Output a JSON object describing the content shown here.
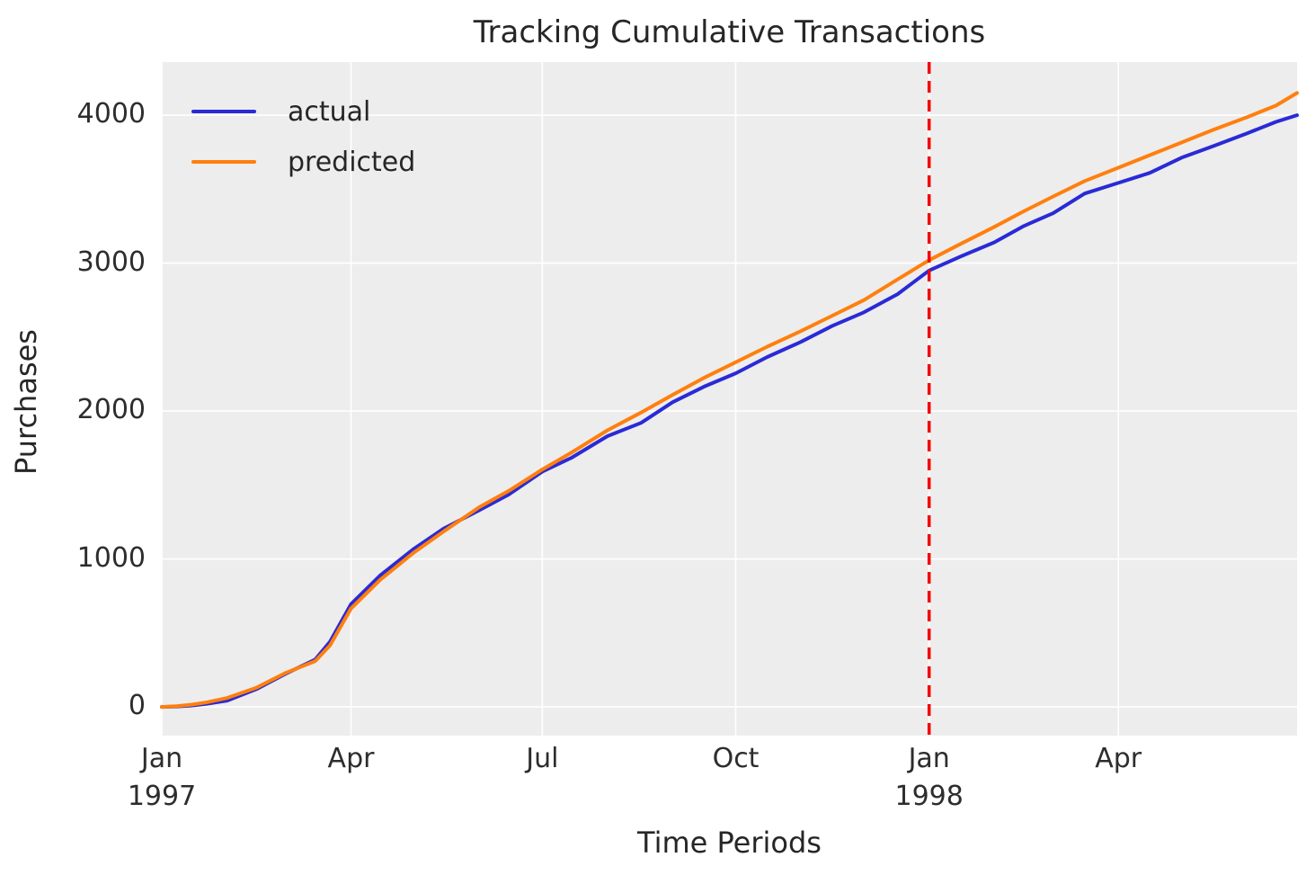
{
  "chart_data": {
    "type": "line",
    "title": "Tracking Cumulative Transactions",
    "xlabel": "Time Periods",
    "ylabel": "Purchases",
    "plot_background": "#ededed",
    "grid": true,
    "grid_color": "#ffffff",
    "legend_position": "upper left",
    "x_unit": "days since 1997-01-01",
    "xlim_days": [
      0,
      540
    ],
    "ylim": [
      -194,
      4359
    ],
    "y_ticks": [
      0,
      1000,
      2000,
      3000,
      4000
    ],
    "x_ticks": [
      {
        "day": 0,
        "label": "Jan",
        "sublabel": "1997"
      },
      {
        "day": 90,
        "label": "Apr",
        "sublabel": ""
      },
      {
        "day": 181,
        "label": "Jul",
        "sublabel": ""
      },
      {
        "day": 273,
        "label": "Oct",
        "sublabel": ""
      },
      {
        "day": 365,
        "label": "Jan",
        "sublabel": "1998"
      },
      {
        "day": 455,
        "label": "Apr",
        "sublabel": ""
      }
    ],
    "dates": [
      "1997-01-01",
      "1997-01-08",
      "1997-01-15",
      "1997-01-22",
      "1997-02-01",
      "1997-02-15",
      "1997-03-01",
      "1997-03-15",
      "1997-03-22",
      "1997-04-01",
      "1997-04-15",
      "1997-05-01",
      "1997-05-15",
      "1997-06-01",
      "1997-06-15",
      "1997-07-01",
      "1997-07-15",
      "1997-08-01",
      "1997-08-17",
      "1997-09-01",
      "1997-09-16",
      "1997-10-01",
      "1997-10-16",
      "1997-11-01",
      "1997-11-16",
      "1997-12-01",
      "1997-12-17",
      "1998-01-01",
      "1998-01-16",
      "1998-02-01",
      "1998-02-15",
      "1998-03-01",
      "1998-03-16",
      "1998-04-01",
      "1998-04-16",
      "1998-05-01",
      "1998-05-16",
      "1998-06-01",
      "1998-06-15",
      "1998-06-25"
    ],
    "x_days": [
      0,
      7,
      14,
      21,
      31,
      45,
      59,
      73,
      80,
      90,
      104,
      120,
      134,
      151,
      165,
      181,
      195,
      212,
      228,
      243,
      258,
      273,
      288,
      304,
      319,
      334,
      350,
      365,
      380,
      396,
      410,
      424,
      439,
      455,
      470,
      485,
      500,
      516,
      530,
      540
    ],
    "series": [
      {
        "name": "actual",
        "color": "#2a2ad6",
        "line_width": 4,
        "values": [
          0,
          3,
          9,
          20,
          42,
          120,
          225,
          320,
          440,
          695,
          890,
          1070,
          1205,
          1330,
          1435,
          1590,
          1685,
          1830,
          1920,
          2060,
          2165,
          2255,
          2365,
          2467,
          2576,
          2667,
          2790,
          2950,
          3045,
          3140,
          3250,
          3337,
          3470,
          3542,
          3610,
          3712,
          3790,
          3876,
          3955,
          4000
        ]
      },
      {
        "name": "predicted",
        "color": "#ff7f0e",
        "line_width": 4,
        "values": [
          0,
          5,
          15,
          30,
          60,
          130,
          230,
          310,
          415,
          665,
          860,
          1045,
          1185,
          1350,
          1460,
          1605,
          1720,
          1870,
          1990,
          2110,
          2225,
          2330,
          2435,
          2540,
          2645,
          2750,
          2890,
          3020,
          3130,
          3245,
          3350,
          3450,
          3555,
          3645,
          3730,
          3815,
          3900,
          3985,
          4065,
          4150
        ]
      }
    ],
    "calibration_end_line": {
      "x_day": 365,
      "date": "1998-01-01",
      "color": "#f40000",
      "style": "dashed",
      "line_width": 3.5
    }
  }
}
